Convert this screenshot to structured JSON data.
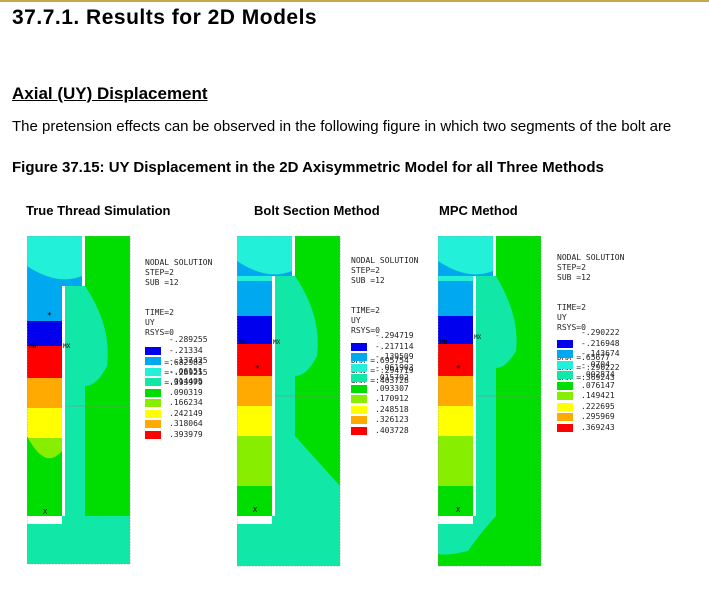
{
  "page": {
    "section_title": "37.7.1. Results for 2D Models",
    "subsection_title": "Axial (UY) Displacement",
    "paragraph": "The pretension effects can be observed in the following figure in which two segments of the bolt are",
    "figure_caption": "Figure 37.15: UY Displacement in the 2D Axisymmetric Model for all Three Methods"
  },
  "colors": {
    "c1": "#0000ee",
    "c2": "#00a8f0",
    "c3": "#22f0d8",
    "c4": "#11e8a8",
    "c5": "#00dd00",
    "c6": "#88ee00",
    "c7": "#ffff00",
    "c8": "#ffaa00",
    "c9": "#ff0000"
  },
  "panels": [
    {
      "title": "True Thread Simulation",
      "header": [
        "NODAL SOLUTION",
        "STEP=2",
        "SUB =12",
        "TIME=2",
        "UY",
        "RSYS=0",
        "DMX =.682983",
        "SMN =-.289255",
        "SMX =.393979"
      ],
      "scale": [
        "-.289255",
        "-.21334",
        "-.137425",
        "-.06151",
        ".014405",
        ".090319",
        ".166234",
        ".242149",
        ".318064",
        ".393979"
      ]
    },
    {
      "title": "Bolt Section Method",
      "header": [
        "NODAL SOLUTION",
        "STEP=2",
        "SUB =12",
        "TIME=2",
        "UY",
        "RSYS=0",
        "DMX =.695754",
        "SMN =-.294719",
        "SMX =.403728"
      ],
      "scale": [
        "-.294719",
        "-.217114",
        "-.139509",
        "-.061903",
        ".015702",
        ".093307",
        ".170912",
        ".248518",
        ".326123",
        ".403728"
      ]
    },
    {
      "title": "MPC Method",
      "header": [
        "NODAL SOLUTION",
        "STEP=2",
        "SUB =12",
        "TIME=2",
        "UY",
        "RSYS=0",
        "DMX =.65677",
        "SMN =-.290222",
        "SMX =.369243"
      ],
      "scale": [
        "-.290222",
        "-.216948",
        "-.143674",
        "-.0704",
        ".002874",
        ".076147",
        ".149421",
        ".222695",
        ".295969",
        ".369243"
      ]
    }
  ],
  "markers": {
    "mn": "MN",
    "mx": "MX",
    "x": "X",
    "star": "*"
  }
}
